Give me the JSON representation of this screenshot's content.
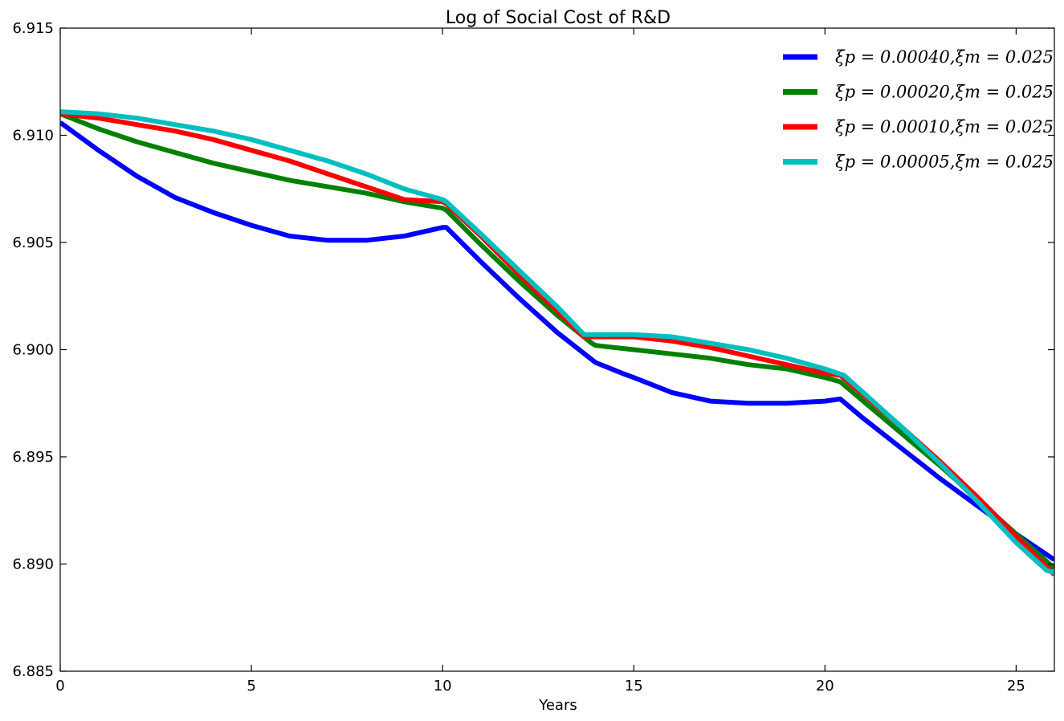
{
  "chart_data": {
    "type": "line",
    "title": "Log of Social Cost of R&D",
    "xlabel": "Years",
    "ylabel": "",
    "xlim": [
      0,
      26
    ],
    "ylim": [
      6.885,
      6.915
    ],
    "xticks": [
      0,
      5,
      10,
      15,
      20,
      25
    ],
    "yticks": [
      6.885,
      6.89,
      6.895,
      6.9,
      6.905,
      6.91,
      6.915
    ],
    "xtick_labels": [
      "0",
      "5",
      "10",
      "15",
      "20",
      "25"
    ],
    "ytick_labels": [
      "6.885",
      "6.890",
      "6.895",
      "6.900",
      "6.905",
      "6.910",
      "6.915"
    ],
    "grid": false,
    "legend_position": "top-right",
    "series": [
      {
        "name": "ξp = 0.00040,ξm = 0.025",
        "color": "#0000ff",
        "x": [
          0,
          1,
          2,
          3,
          4,
          5,
          6,
          7,
          8,
          9,
          10,
          10.1,
          11,
          12,
          13,
          14,
          14.7,
          15,
          16,
          17,
          18,
          19,
          20,
          20.4,
          21,
          22,
          23,
          24,
          25,
          26
        ],
        "y": [
          6.9106,
          6.9093,
          6.9081,
          6.9071,
          6.9064,
          6.9058,
          6.9053,
          6.9051,
          6.9051,
          6.9053,
          6.9057,
          6.9057,
          6.9041,
          6.9024,
          6.9008,
          6.8994,
          6.8989,
          6.8987,
          6.898,
          6.8976,
          6.8975,
          6.8975,
          6.8976,
          6.8977,
          6.8968,
          6.8954,
          6.894,
          6.8927,
          6.8914,
          6.8902
        ]
      },
      {
        "name": "ξp = 0.00020,ξm = 0.025",
        "color": "#008000",
        "x": [
          0,
          1,
          2,
          3,
          4,
          5,
          6,
          7,
          8,
          9,
          10,
          10.1,
          11,
          12,
          13,
          13.9,
          14,
          15,
          16,
          17,
          18,
          19,
          20,
          20.4,
          21,
          22,
          23,
          24,
          25,
          26
        ],
        "y": [
          6.911,
          6.9103,
          6.9097,
          6.9092,
          6.9087,
          6.9083,
          6.9079,
          6.9076,
          6.9073,
          6.9069,
          6.9066,
          6.9065,
          6.9049,
          6.9032,
          6.9016,
          6.9003,
          6.9002,
          6.9,
          6.8998,
          6.8996,
          6.8993,
          6.8991,
          6.8987,
          6.8985,
          6.8976,
          6.8961,
          6.8946,
          6.893,
          6.8914,
          6.8898
        ]
      },
      {
        "name": "ξp = 0.00010,ξm = 0.025",
        "color": "#ff0000",
        "x": [
          0,
          1,
          2,
          3,
          4,
          5,
          6,
          7,
          8,
          9,
          10,
          10.1,
          11,
          12,
          13,
          13.7,
          14,
          15,
          16,
          17,
          18,
          19,
          20,
          20.4,
          21,
          22,
          23,
          24,
          25,
          26
        ],
        "y": [
          6.911,
          6.9108,
          6.9105,
          6.9102,
          6.9098,
          6.9093,
          6.9088,
          6.9082,
          6.9076,
          6.907,
          6.9069,
          6.9068,
          6.9053,
          6.9035,
          6.9018,
          6.9006,
          6.9006,
          6.9006,
          6.9004,
          6.9001,
          6.8997,
          6.8993,
          6.8989,
          6.8988,
          6.8979,
          6.8964,
          6.8948,
          6.8931,
          6.8913,
          6.8895
        ]
      },
      {
        "name": "ξp = 0.00005,ξm = 0.025",
        "color": "#00bfbf",
        "x": [
          0,
          1,
          2,
          3,
          4,
          5,
          6,
          7,
          8,
          9,
          10,
          10.1,
          11,
          12,
          13,
          13.7,
          14,
          15,
          16,
          17,
          18,
          19,
          20,
          20.5,
          21,
          22,
          23,
          24,
          25,
          25.8,
          26
        ],
        "y": [
          6.9111,
          6.911,
          6.9108,
          6.9105,
          6.9102,
          6.9098,
          6.9093,
          6.9088,
          6.9082,
          6.9075,
          6.907,
          6.9069,
          6.9054,
          6.9037,
          6.902,
          6.9007,
          6.9007,
          6.9007,
          6.9006,
          6.9003,
          6.9,
          6.8996,
          6.8991,
          6.8988,
          6.898,
          6.8964,
          6.8947,
          6.8929,
          6.891,
          6.8897,
          6.8896
        ]
      }
    ]
  }
}
